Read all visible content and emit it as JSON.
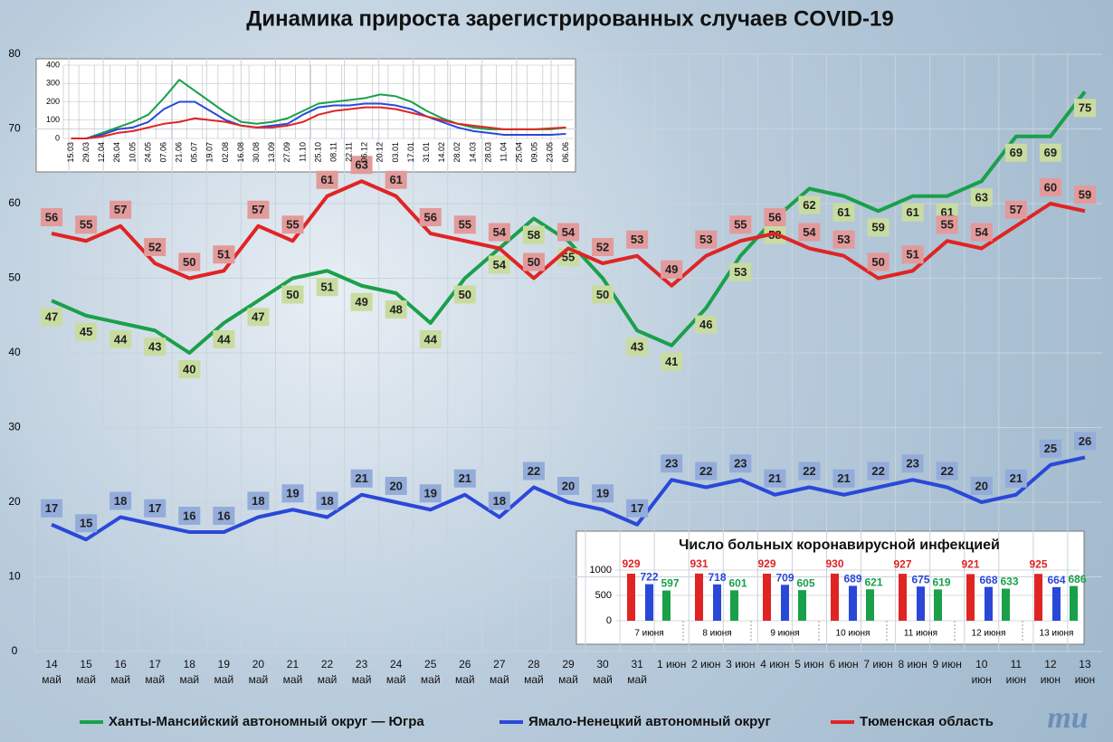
{
  "title": "Динамика прироста зарегистрированных случаев COVID-19",
  "logo": "mu",
  "chart_data": [
    {
      "type": "line",
      "categories": [
        "14 май",
        "15 май",
        "16 май",
        "17 май",
        "18 май",
        "19 май",
        "20 май",
        "21 май",
        "22 май",
        "23 май",
        "24 май",
        "25 май",
        "26 май",
        "27 май",
        "28 май",
        "29 май",
        "30 май",
        "31 май",
        "1 июн",
        "2 июн",
        "3 июн",
        "4 июн",
        "5 июн",
        "6 июн",
        "7 июн",
        "8 июн",
        "9 июн",
        "10 июн",
        "11 июн",
        "12 июн",
        "13 июн"
      ],
      "series": [
        {
          "name": "Ханты-Мансийский автономный округ — Югра",
          "color": "#1aa04a",
          "values": [
            47,
            45,
            44,
            43,
            40,
            44,
            47,
            50,
            51,
            49,
            48,
            44,
            50,
            54,
            58,
            55,
            50,
            43,
            41,
            46,
            53,
            58,
            62,
            61,
            59,
            61,
            61,
            63,
            69,
            69,
            75
          ]
        },
        {
          "name": "Ямало-Ненецкий автономный округ",
          "color": "#2a48d8",
          "values": [
            17,
            15,
            18,
            17,
            16,
            16,
            18,
            19,
            18,
            21,
            20,
            19,
            21,
            18,
            22,
            20,
            19,
            17,
            23,
            22,
            23,
            21,
            22,
            21,
            22,
            23,
            22,
            20,
            21,
            25,
            26
          ]
        },
        {
          "name": "Тюменская область",
          "color": "#e02424",
          "values": [
            56,
            55,
            57,
            52,
            50,
            51,
            57,
            55,
            61,
            63,
            61,
            56,
            55,
            54,
            50,
            54,
            52,
            53,
            49,
            53,
            55,
            56,
            54,
            53,
            50,
            51,
            55,
            54,
            57,
            60,
            59
          ]
        }
      ],
      "ylim": [
        0,
        80
      ],
      "yticks": [
        0,
        10,
        20,
        30,
        40,
        50,
        60,
        70,
        80
      ],
      "grid": true,
      "legend": "bottom",
      "data_labels": true
    },
    {
      "type": "line",
      "categories": [
        "15.03",
        "29.03",
        "12.04",
        "26.04",
        "10.05",
        "24.05",
        "07.06",
        "21.06",
        "05.07",
        "19.07",
        "02.08",
        "16.08",
        "30.08",
        "13.09",
        "27.09",
        "11.10",
        "25.10",
        "08.11",
        "22.11",
        "06.12",
        "20.12",
        "03.01",
        "17.01",
        "31.01",
        "14.02",
        "28.02",
        "14.03",
        "28.03",
        "11.04",
        "25.04",
        "09.05",
        "23.05",
        "06.06"
      ],
      "series": [
        {
          "color": "#1aa04a",
          "values": [
            0,
            0,
            30,
            60,
            90,
            130,
            220,
            320,
            260,
            200,
            140,
            90,
            80,
            90,
            110,
            150,
            190,
            200,
            210,
            220,
            240,
            230,
            200,
            150,
            110,
            80,
            60,
            50,
            50,
            50,
            50,
            50,
            60
          ]
        },
        {
          "color": "#2a48d8",
          "values": [
            0,
            0,
            20,
            50,
            60,
            90,
            160,
            200,
            200,
            150,
            100,
            70,
            60,
            70,
            80,
            130,
            170,
            180,
            180,
            190,
            190,
            180,
            160,
            120,
            90,
            60,
            40,
            30,
            20,
            20,
            20,
            20,
            25
          ]
        },
        {
          "color": "#e02424",
          "values": [
            0,
            0,
            10,
            30,
            40,
            60,
            80,
            90,
            110,
            100,
            90,
            70,
            60,
            60,
            70,
            90,
            130,
            150,
            160,
            170,
            170,
            160,
            140,
            120,
            100,
            80,
            70,
            60,
            50,
            50,
            50,
            55,
            60
          ]
        }
      ],
      "ylim": [
        0,
        400
      ],
      "yticks": [
        0,
        100,
        200,
        300,
        400
      ],
      "grid": true
    },
    {
      "type": "bar",
      "title": "Число больных коронавирусной инфекцией",
      "categories": [
        "7 июня",
        "8 июня",
        "9 июня",
        "10 июня",
        "11 июня",
        "12 июня",
        "13 июня"
      ],
      "series": [
        {
          "color": "#e02424",
          "values": [
            929,
            931,
            929,
            930,
            927,
            921,
            925
          ]
        },
        {
          "color": "#2a48d8",
          "values": [
            722,
            718,
            709,
            689,
            675,
            668,
            664
          ]
        },
        {
          "color": "#1aa04a",
          "values": [
            597,
            601,
            605,
            621,
            619,
            633,
            686
          ]
        }
      ],
      "ylim": [
        0,
        1000
      ],
      "yticks": [
        0,
        500,
        1000
      ],
      "grid": true,
      "data_labels": true
    }
  ]
}
